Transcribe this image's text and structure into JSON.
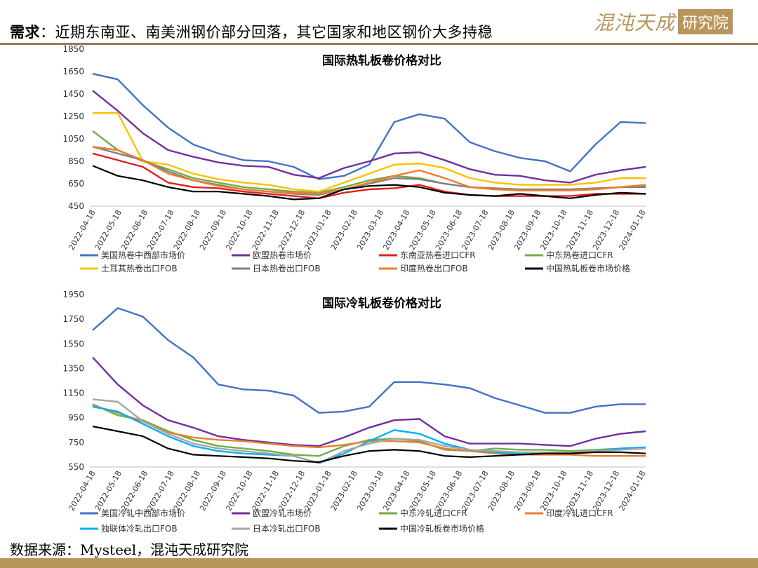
{
  "header": {
    "prefix": "需求",
    "colon": "：",
    "text": "近期东南亚、南美洲钢价部分回落，其它国家和地区钢价大多持稳"
  },
  "logo": {
    "text": "混沌天成",
    "box_text": "研究院"
  },
  "footer": {
    "source": "数据来源：Mysteel，混沌天成研究院"
  },
  "colors": {
    "header_rule": "#9a7b4f",
    "brand_gold": "#b8955a"
  },
  "chart_data": [
    {
      "type": "line",
      "title": "国际热轧板卷价格对比",
      "ylim": [
        450,
        1850
      ],
      "yticks": [
        450,
        650,
        850,
        1050,
        1250,
        1450,
        1650,
        1850
      ],
      "xticks": [
        "2022-04-18",
        "2022-05-18",
        "2022-06-18",
        "2022-07-18",
        "2022-08-18",
        "2022-09-18",
        "2022-10-18",
        "2022-11-18",
        "2022-12-18",
        "2023-01-18",
        "2023-02-18",
        "2023-03-18",
        "2023-04-18",
        "2023-05-18",
        "2023-06-18",
        "2023-07-18",
        "2023-08-18",
        "2023-09-18",
        "2023-10-18",
        "2023-11-18",
        "2023-12-18",
        "2024-01-18"
      ],
      "grid": false,
      "legend": "bottom",
      "series": [
        {
          "name": "美国热卷中西部市场价",
          "color": "#4472c4",
          "values": [
            1630,
            1580,
            1350,
            1150,
            1000,
            920,
            860,
            850,
            800,
            690,
            720,
            820,
            1200,
            1270,
            1230,
            1020,
            940,
            880,
            850,
            760,
            1000,
            1200,
            1190
          ]
        },
        {
          "name": "欧盟热卷市场价",
          "color": "#7030a0",
          "values": [
            1480,
            1300,
            1100,
            950,
            890,
            840,
            810,
            800,
            730,
            700,
            790,
            850,
            920,
            930,
            860,
            780,
            730,
            720,
            680,
            660,
            730,
            770,
            800
          ]
        },
        {
          "name": "东南亚热卷进口CFR",
          "color": "#e02020",
          "values": [
            920,
            860,
            800,
            660,
            620,
            610,
            580,
            560,
            540,
            520,
            570,
            600,
            610,
            640,
            580,
            550,
            540,
            540,
            540,
            540,
            560,
            560,
            560
          ]
        },
        {
          "name": "中东热卷进口CFR",
          "color": "#70ad47",
          "values": [
            1120,
            950,
            850,
            780,
            700,
            660,
            620,
            600,
            580,
            570,
            620,
            680,
            720,
            700,
            650,
            620,
            600,
            590,
            590,
            590,
            600,
            620,
            630
          ]
        },
        {
          "name": "土耳其热卷出口FOB",
          "color": "#ffc000",
          "values": [
            1280,
            1280,
            850,
            820,
            740,
            690,
            660,
            640,
            600,
            580,
            660,
            740,
            820,
            830,
            790,
            700,
            660,
            640,
            640,
            640,
            660,
            700,
            700
          ]
        },
        {
          "name": "日本热卷出口FOB",
          "color": "#808080",
          "values": [
            980,
            920,
            860,
            760,
            680,
            640,
            600,
            580,
            560,
            550,
            600,
            650,
            700,
            690,
            650,
            620,
            610,
            600,
            600,
            600,
            610,
            620,
            620
          ]
        },
        {
          "name": "印度热卷出口FOB",
          "color": "#ed7d31",
          "values": [
            980,
            950,
            860,
            740,
            680,
            630,
            600,
            580,
            570,
            560,
            600,
            660,
            720,
            770,
            700,
            620,
            600,
            590,
            590,
            590,
            600,
            620,
            640
          ]
        },
        {
          "name": "中国热轧板卷市场价格",
          "color": "#000000",
          "values": [
            810,
            720,
            680,
            620,
            580,
            580,
            560,
            540,
            510,
            520,
            600,
            630,
            640,
            620,
            570,
            550,
            540,
            560,
            540,
            520,
            550,
            570,
            560
          ]
        }
      ]
    },
    {
      "type": "line",
      "title": "国际冷轧板卷价格对比",
      "ylim": [
        550,
        1950
      ],
      "yticks": [
        550,
        750,
        950,
        1150,
        1350,
        1550,
        1750,
        1950
      ],
      "xticks": [
        "2022-04-18",
        "2022-05-18",
        "2022-06-18",
        "2022-07-18",
        "2022-08-18",
        "2022-09-18",
        "2022-10-18",
        "2022-11-18",
        "2022-12-18",
        "2023-01-18",
        "2023-02-18",
        "2023-03-18",
        "2023-04-18",
        "2023-05-18",
        "2023-06-18",
        "2023-07-18",
        "2023-08-18",
        "2023-09-18",
        "2023-10-18",
        "2023-11-18",
        "2023-12-18",
        "2024-01-18"
      ],
      "grid": false,
      "legend": "bottom",
      "series": [
        {
          "name": "美国冷轧中西部市场价",
          "color": "#4472c4",
          "values": [
            1660,
            1840,
            1770,
            1580,
            1440,
            1220,
            1180,
            1170,
            1130,
            990,
            1000,
            1040,
            1240,
            1240,
            1220,
            1190,
            1110,
            1050,
            990,
            990,
            1040,
            1060,
            1060
          ]
        },
        {
          "name": "欧盟冷轧市场价",
          "color": "#7030a0",
          "values": [
            1440,
            1220,
            1050,
            930,
            870,
            800,
            770,
            750,
            730,
            720,
            790,
            870,
            930,
            940,
            800,
            740,
            740,
            740,
            730,
            720,
            780,
            820,
            840
          ]
        },
        {
          "name": "中东冷轧进口CFR",
          "color": "#70ad47",
          "values": [
            1060,
            970,
            930,
            840,
            770,
            720,
            700,
            680,
            650,
            640,
            720,
            770,
            780,
            760,
            690,
            680,
            700,
            690,
            690,
            680,
            690,
            700,
            710
          ]
        },
        {
          "name": "印度冷轧进口CFR",
          "color": "#ed7d31",
          "values": [
            1050,
            990,
            920,
            830,
            790,
            770,
            760,
            740,
            720,
            710,
            730,
            760,
            760,
            750,
            700,
            680,
            660,
            650,
            650,
            650,
            640,
            640,
            640
          ]
        },
        {
          "name": "独联体冷轧出口FOB",
          "color": "#00b0f0",
          "values": [
            1040,
            1000,
            900,
            800,
            720,
            680,
            660,
            650,
            640,
            580,
            660,
            760,
            850,
            820,
            740,
            690,
            670,
            660,
            660,
            660,
            680,
            700,
            710
          ]
        },
        {
          "name": "日本冷轧出口FOB",
          "color": "#a6a6a6",
          "values": [
            1100,
            1080,
            920,
            820,
            740,
            700,
            680,
            660,
            640,
            580,
            680,
            740,
            780,
            770,
            720,
            690,
            680,
            670,
            670,
            670,
            680,
            690,
            700
          ]
        },
        {
          "name": "中国冷轧板卷市场价格",
          "color": "#000000",
          "values": [
            880,
            840,
            800,
            700,
            650,
            640,
            630,
            620,
            600,
            590,
            640,
            680,
            690,
            680,
            640,
            630,
            640,
            650,
            660,
            660,
            670,
            670,
            660
          ]
        }
      ]
    }
  ]
}
